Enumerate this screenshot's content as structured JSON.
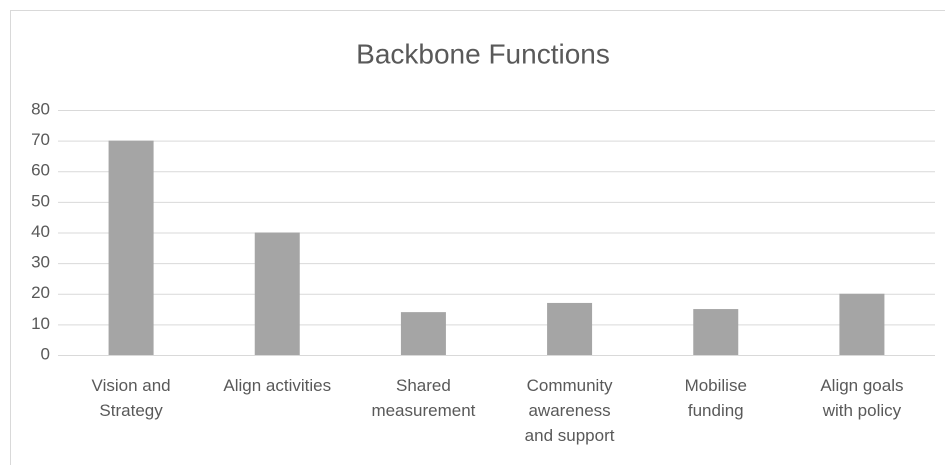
{
  "chart_data": {
    "type": "bar",
    "title": "Backbone Functions",
    "categories": [
      "Vision and\nStrategy",
      "Align activities",
      "Shared\nmeasurement",
      "Community\nawareness\nand support",
      "Mobilise\nfunding",
      "Align goals\nwith policy"
    ],
    "values": [
      70,
      40,
      14,
      17,
      15,
      20
    ],
    "color": "#a5a5a5",
    "ylim": [
      0,
      80
    ],
    "yticks": [
      0,
      10,
      20,
      30,
      40,
      50,
      60,
      70,
      80
    ],
    "grid": true
  }
}
